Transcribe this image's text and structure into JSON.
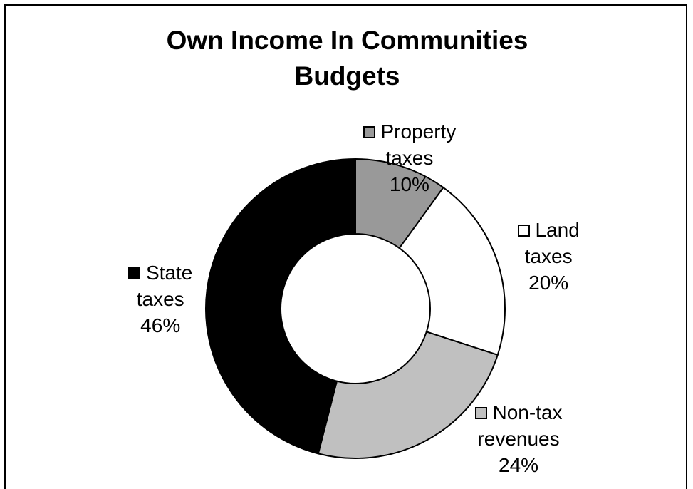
{
  "chart_data": {
    "type": "pie",
    "style": "doughnut",
    "title": "Own Income In Communities\nBudgets",
    "legend": "none",
    "slices": [
      {
        "label_lines": [
          "Property",
          "taxes"
        ],
        "value": 10,
        "value_label": "10%",
        "color": "#999999"
      },
      {
        "label_lines": [
          "Land",
          "taxes"
        ],
        "value": 20,
        "value_label": "20%",
        "color": "#ffffff"
      },
      {
        "label_lines": [
          "Non-tax",
          "revenues"
        ],
        "value": 24,
        "value_label": "24%",
        "color": "#c0c0c0"
      },
      {
        "label_lines": [
          "State",
          "taxes"
        ],
        "value": 46,
        "value_label": "46%",
        "color": "#000000"
      }
    ]
  }
}
